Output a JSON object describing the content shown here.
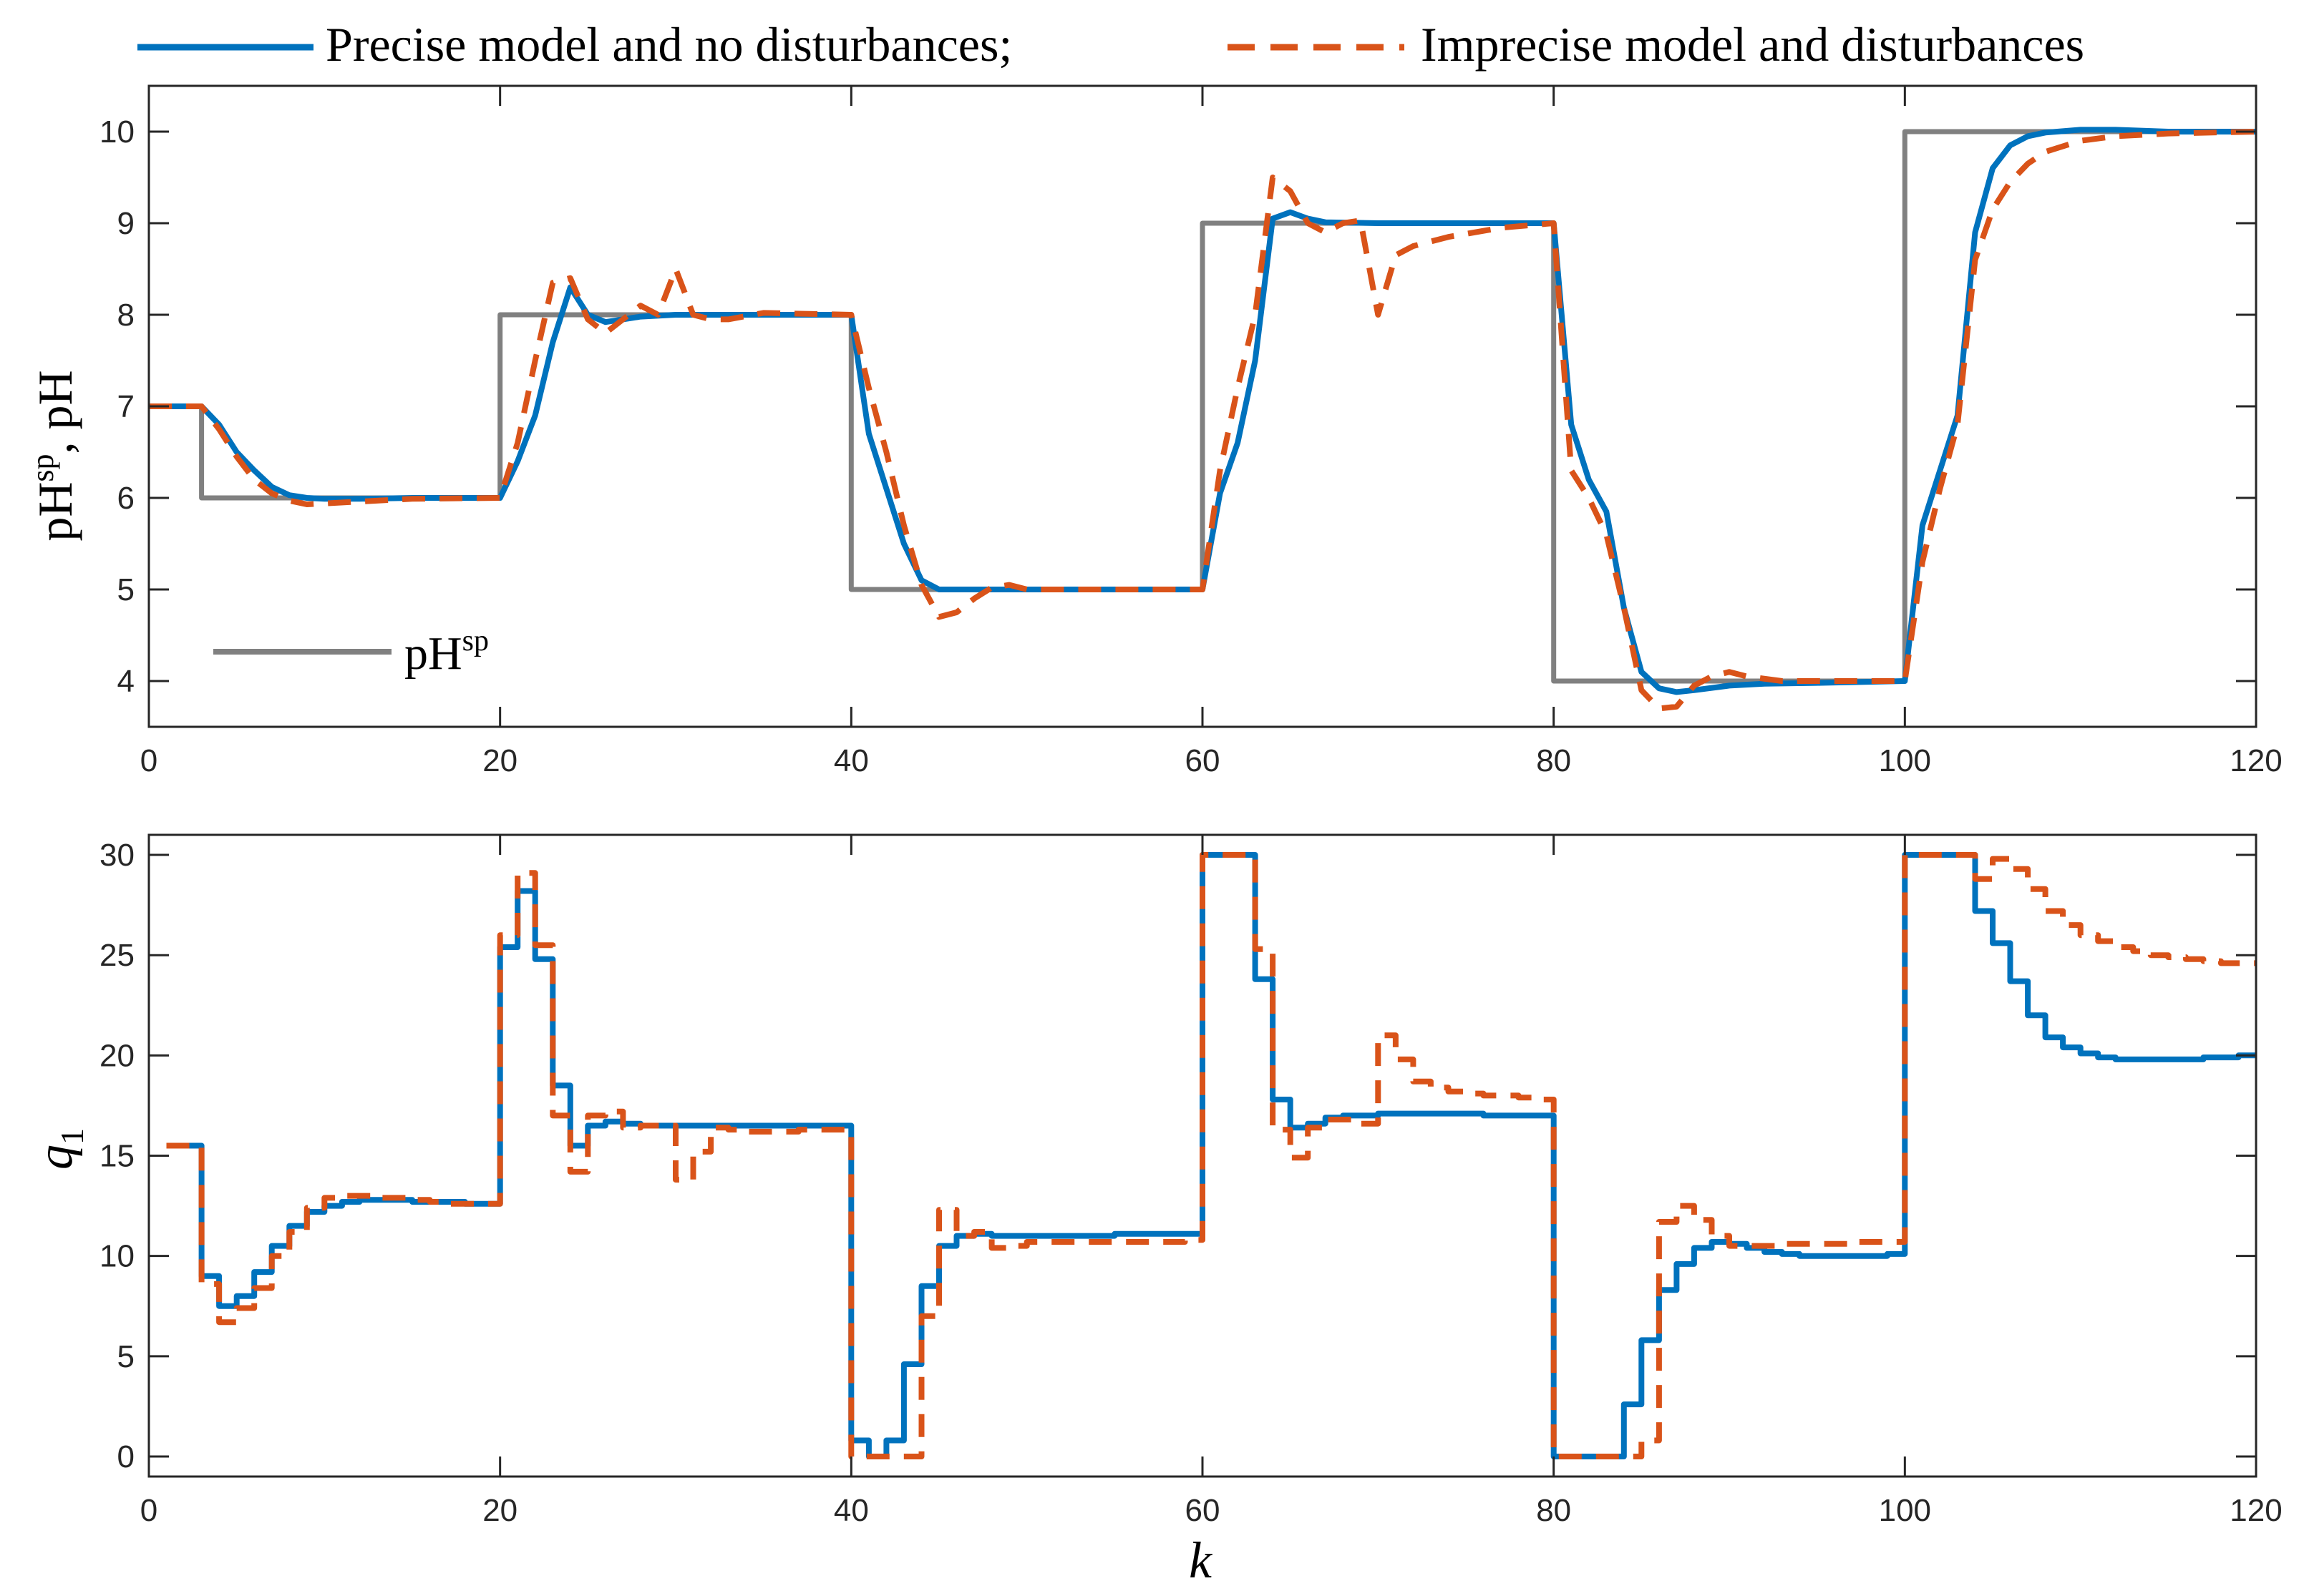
{
  "colors": {
    "precise": "#0072BD",
    "imprecise": "#D95319",
    "setpoint": "#808080",
    "axes": "#262626"
  },
  "legend": {
    "precise_label": "Precise model and no disturbances;",
    "imprecise_label": "Imprecise model and disturbances"
  },
  "chart_data": [
    {
      "type": "line",
      "ylabel": "pH^sp, pH",
      "ylabel_base": "pH",
      "ylabel_sup": "sp",
      "ylabel_rest": ", pH",
      "xlim": [
        0,
        120
      ],
      "ylim": [
        3.5,
        10.5
      ],
      "xticks": [
        0,
        20,
        40,
        60,
        80,
        100,
        120
      ],
      "yticks": [
        4,
        5,
        6,
        7,
        8,
        9,
        10
      ],
      "inner_legend": {
        "base": "pH",
        "sup": "sp",
        "location": "bottom-left"
      },
      "series": [
        {
          "name": "pH^sp",
          "style": "setpoint",
          "x": [
            0,
            3,
            3,
            20,
            20,
            40,
            40,
            60,
            60,
            80,
            80,
            100,
            100,
            120
          ],
          "y": [
            7,
            7,
            6,
            6,
            8,
            8,
            5,
            5,
            9,
            9,
            4,
            4,
            10,
            10
          ]
        },
        {
          "name": "Precise model and no disturbances",
          "style": "precise",
          "x": [
            0,
            3,
            4,
            5,
            6,
            7,
            8,
            9,
            10,
            12,
            15,
            20,
            21,
            22,
            23,
            24,
            25,
            26,
            27,
            28,
            30,
            40,
            41,
            42,
            43,
            44,
            45,
            46,
            48,
            50,
            60,
            61,
            62,
            63,
            64,
            65,
            66,
            67,
            70,
            80,
            81,
            82,
            83,
            84,
            85,
            86,
            87,
            88,
            90,
            92,
            95,
            100,
            101,
            102,
            103,
            104,
            105,
            106,
            107,
            108,
            110,
            112,
            115,
            120
          ],
          "y": [
            7,
            7,
            6.8,
            6.5,
            6.3,
            6.12,
            6.03,
            6.0,
            5.99,
            5.99,
            6.0,
            6.0,
            6.4,
            6.9,
            7.7,
            8.3,
            8.0,
            7.92,
            7.95,
            7.98,
            8.0,
            8.0,
            6.7,
            6.1,
            5.5,
            5.1,
            5.0,
            5.0,
            5.0,
            5.0,
            5.0,
            6.05,
            6.6,
            7.5,
            9.05,
            9.12,
            9.05,
            9.01,
            9.0,
            9.0,
            6.8,
            6.2,
            5.85,
            4.8,
            4.1,
            3.92,
            3.88,
            3.9,
            3.95,
            3.97,
            3.98,
            4.0,
            5.7,
            6.3,
            6.9,
            8.9,
            9.6,
            9.85,
            9.95,
            9.99,
            10.02,
            10.02,
            10.0,
            10.0
          ]
        },
        {
          "name": "Imprecise model and disturbances",
          "style": "imprecise",
          "x": [
            0,
            3,
            4,
            5,
            6,
            7,
            8,
            9,
            10,
            12,
            15,
            20,
            21,
            22,
            23,
            24,
            25,
            26,
            27,
            28,
            29,
            30,
            31,
            32,
            33,
            35,
            40,
            41,
            42,
            43,
            44,
            45,
            46,
            47,
            48,
            49,
            50,
            55,
            60,
            61,
            62,
            63,
            64,
            65,
            66,
            67,
            68,
            69,
            70,
            71,
            72,
            74,
            77,
            80,
            81,
            82,
            83,
            84,
            85,
            86,
            87,
            88,
            89,
            90,
            91,
            93,
            100,
            101,
            102,
            103,
            104,
            105,
            106,
            107,
            108,
            110,
            112,
            115,
            120
          ],
          "y": [
            7,
            7,
            6.75,
            6.45,
            6.2,
            6.05,
            5.97,
            5.93,
            5.94,
            5.96,
            5.99,
            6.0,
            6.6,
            7.5,
            8.35,
            8.4,
            7.95,
            7.8,
            7.95,
            8.1,
            8.0,
            8.5,
            8.0,
            7.95,
            7.95,
            8.02,
            8.0,
            7.2,
            6.5,
            5.7,
            5.05,
            4.7,
            4.75,
            4.9,
            5.02,
            5.05,
            5.0,
            5.0,
            5.0,
            6.3,
            7.2,
            8.0,
            9.5,
            9.35,
            9.0,
            8.9,
            9.0,
            9.03,
            8.0,
            8.65,
            8.75,
            8.85,
            8.95,
            9.0,
            6.3,
            6.0,
            5.6,
            4.8,
            3.9,
            3.7,
            3.72,
            3.95,
            4.05,
            4.1,
            4.05,
            4.0,
            4.0,
            5.3,
            6.1,
            6.8,
            8.6,
            9.15,
            9.45,
            9.65,
            9.78,
            9.9,
            9.95,
            9.98,
            10.0
          ]
        }
      ]
    },
    {
      "type": "line",
      "ylabel": "q1",
      "ylabel_base": "q",
      "ylabel_sub": "1",
      "xlabel": "k",
      "xlim": [
        0,
        120
      ],
      "ylim": [
        -1,
        31
      ],
      "xticks": [
        0,
        20,
        40,
        60,
        80,
        100,
        120
      ],
      "yticks": [
        0,
        5,
        10,
        15,
        20,
        25,
        30
      ],
      "series": [
        {
          "name": "Precise model and no disturbances",
          "style": "precise",
          "step": true,
          "x": [
            1,
            3,
            4,
            5,
            6,
            7,
            8,
            9,
            10,
            11,
            12,
            13,
            14,
            15,
            16,
            17,
            18,
            19,
            20,
            21,
            22,
            23,
            24,
            25,
            26,
            27,
            28,
            29,
            30,
            31,
            32,
            33,
            34,
            35,
            36,
            37,
            38,
            39,
            40,
            41,
            42,
            43,
            44,
            45,
            46,
            47,
            48,
            49,
            50,
            51,
            52,
            53,
            54,
            55,
            56,
            57,
            58,
            59,
            60,
            61,
            62,
            63,
            64,
            65,
            66,
            67,
            68,
            69,
            70,
            71,
            72,
            73,
            74,
            75,
            76,
            77,
            78,
            79,
            80,
            81,
            82,
            83,
            84,
            85,
            86,
            87,
            88,
            89,
            90,
            91,
            92,
            93,
            94,
            95,
            96,
            97,
            98,
            99,
            100,
            101,
            102,
            103,
            104,
            105,
            106,
            107,
            108,
            109,
            110,
            111,
            112,
            113,
            114,
            115,
            116,
            117,
            118,
            119,
            120
          ],
          "y": [
            15.5,
            9.0,
            7.5,
            8.0,
            9.2,
            10.5,
            11.5,
            12.2,
            12.5,
            12.7,
            12.8,
            12.8,
            12.8,
            12.7,
            12.7,
            12.7,
            12.6,
            12.6,
            25.4,
            28.2,
            24.8,
            18.5,
            15.5,
            16.5,
            16.7,
            16.6,
            16.5,
            16.5,
            16.5,
            16.5,
            16.5,
            16.5,
            16.5,
            16.5,
            16.5,
            16.5,
            16.5,
            16.5,
            0.8,
            0.0,
            0.8,
            4.6,
            8.5,
            10.5,
            11.0,
            11.1,
            11.0,
            11.0,
            11.0,
            11.0,
            11.0,
            11.0,
            11.0,
            11.1,
            11.1,
            11.1,
            11.1,
            11.1,
            30.0,
            30.0,
            30.0,
            23.8,
            17.8,
            16.4,
            16.6,
            16.9,
            17.0,
            17.0,
            17.1,
            17.1,
            17.1,
            17.1,
            17.1,
            17.1,
            17.0,
            17.0,
            17.0,
            17.0,
            0.0,
            0.0,
            0.0,
            0.0,
            2.6,
            5.8,
            8.3,
            9.6,
            10.4,
            10.7,
            10.6,
            10.4,
            10.2,
            10.1,
            10.0,
            10.0,
            10.0,
            10.0,
            10.0,
            10.1,
            30.0,
            30.0,
            30.0,
            30.0,
            27.2,
            25.6,
            23.7,
            22.0,
            20.9,
            20.4,
            20.1,
            19.9,
            19.8,
            19.8,
            19.8,
            19.8,
            19.8,
            19.9,
            19.9,
            20.0,
            20.0
          ],
          "end_x": 120
        },
        {
          "name": "Imprecise model and disturbances",
          "style": "imprecise",
          "step": true,
          "x": [
            1,
            3,
            4,
            5,
            6,
            7,
            8,
            9,
            10,
            11,
            12,
            13,
            14,
            15,
            16,
            17,
            18,
            19,
            20,
            21,
            22,
            23,
            24,
            25,
            26,
            27,
            28,
            29,
            30,
            31,
            32,
            33,
            34,
            35,
            36,
            37,
            38,
            39,
            40,
            41,
            42,
            43,
            44,
            45,
            46,
            47,
            48,
            49,
            50,
            51,
            52,
            53,
            54,
            55,
            56,
            57,
            58,
            59,
            60,
            61,
            62,
            63,
            64,
            65,
            66,
            67,
            68,
            69,
            70,
            71,
            72,
            73,
            74,
            75,
            76,
            77,
            78,
            79,
            80,
            81,
            82,
            83,
            84,
            85,
            86,
            87,
            88,
            89,
            90,
            91,
            92,
            93,
            94,
            95,
            96,
            97,
            98,
            99,
            100,
            101,
            102,
            103,
            104,
            105,
            106,
            107,
            108,
            109,
            110,
            111,
            112,
            113,
            114,
            115,
            116,
            117,
            118,
            119,
            120
          ],
          "y": [
            15.5,
            8.6,
            6.7,
            7.4,
            8.4,
            10.0,
            11.2,
            12.4,
            12.9,
            13.0,
            13.0,
            12.9,
            12.9,
            12.8,
            12.7,
            12.6,
            12.6,
            12.6,
            26.0,
            29.1,
            25.5,
            17.0,
            14.2,
            17.0,
            17.2,
            16.4,
            16.5,
            16.5,
            13.8,
            15.2,
            16.4,
            16.3,
            16.2,
            16.2,
            16.2,
            16.3,
            16.3,
            16.3,
            0.0,
            0.0,
            0.0,
            0.0,
            7.0,
            12.3,
            11.0,
            11.2,
            10.4,
            10.5,
            10.7,
            10.7,
            10.7,
            10.7,
            10.7,
            10.7,
            10.7,
            10.7,
            10.7,
            10.8,
            30.0,
            30.0,
            30.0,
            25.3,
            16.3,
            14.9,
            16.4,
            16.8,
            16.8,
            16.6,
            21.0,
            19.8,
            18.7,
            18.4,
            18.2,
            18.1,
            18.0,
            18.0,
            17.9,
            17.8,
            0.0,
            0.0,
            0.0,
            0.0,
            0.0,
            0.8,
            11.7,
            12.5,
            11.8,
            11.0,
            10.5,
            10.5,
            10.5,
            10.6,
            10.6,
            10.6,
            10.6,
            10.7,
            10.7,
            10.7,
            30.0,
            30.0,
            30.0,
            30.0,
            28.8,
            29.8,
            29.3,
            28.3,
            27.2,
            26.5,
            26.0,
            25.7,
            25.4,
            25.2,
            25.0,
            24.9,
            24.8,
            24.7,
            24.6,
            24.6,
            24.6
          ],
          "end_x": 120
        }
      ]
    }
  ]
}
